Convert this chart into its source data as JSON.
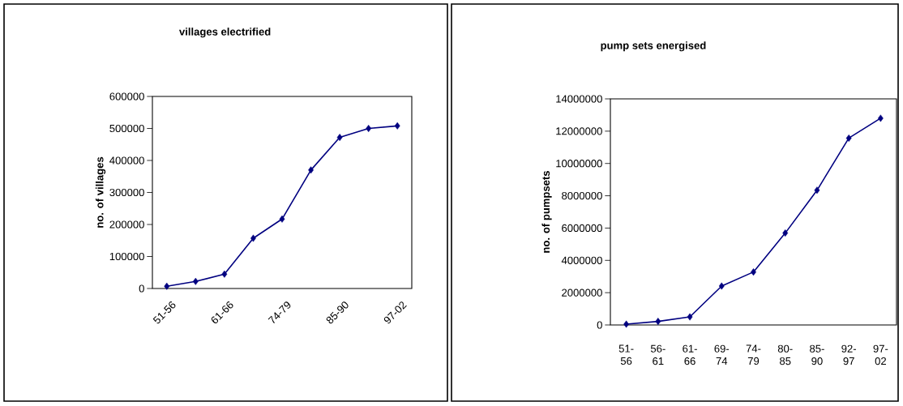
{
  "chart_data": [
    {
      "type": "line",
      "title": "villages electrified",
      "ylabel": "no. of villages",
      "categories": [
        "51-56",
        null,
        "61-66",
        null,
        "74-79",
        null,
        "85-90",
        null,
        "97-02"
      ],
      "values": [
        7000,
        22000,
        45000,
        157000,
        217000,
        370000,
        472000,
        500000,
        508000
      ],
      "color": "#000080",
      "marker": "diamond",
      "ylim": [
        0,
        600000
      ],
      "yticks": [
        0,
        100000,
        200000,
        300000,
        400000,
        500000,
        600000
      ]
    },
    {
      "type": "line",
      "title": "pump sets energised",
      "ylabel": "no. of pumpsets",
      "categories": [
        "51-56",
        "56-61",
        "61-66",
        "69-74",
        "74-79",
        "80-85",
        "85-90",
        "92-97",
        "97-02"
      ],
      "values": [
        50000,
        220000,
        500000,
        2410000,
        3280000,
        5690000,
        8340000,
        11570000,
        12800000
      ],
      "color": "#000080",
      "marker": "diamond",
      "ylim": [
        0,
        14000000
      ],
      "yticks": [
        0,
        2000000,
        4000000,
        6000000,
        8000000,
        10000000,
        12000000,
        14000000
      ]
    }
  ]
}
